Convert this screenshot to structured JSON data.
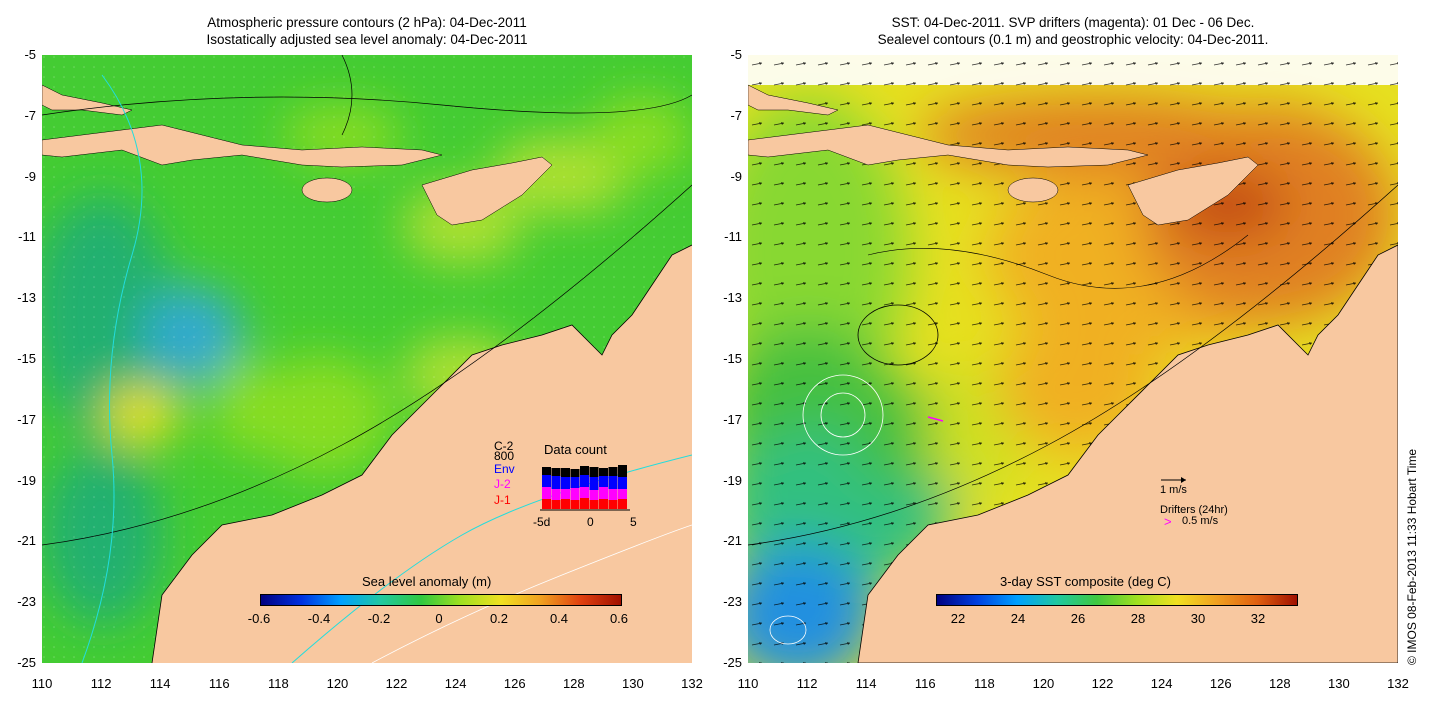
{
  "left_panel": {
    "title_line1": "Atmospheric pressure contours (2 hPa): 04-Dec-2011",
    "title_line2": "Isostatically adjusted sea level anomaly: 04-Dec-2011",
    "y_ticks": [
      "-5",
      "-7",
      "-9",
      "-11",
      "-13",
      "-15",
      "-17",
      "-19",
      "-21",
      "-23",
      "-25"
    ],
    "x_ticks": [
      "110",
      "112",
      "114",
      "116",
      "118",
      "120",
      "122",
      "124",
      "126",
      "128",
      "130",
      "132"
    ],
    "colorbar_title": "Sea level anomaly (m)",
    "colorbar_ticks": [
      "-0.6",
      "-0.4",
      "-0.2",
      "0",
      "0.2",
      "0.4",
      "0.6"
    ],
    "data_count": {
      "title": "Data count",
      "legend": [
        {
          "label": "C-2",
          "color": "#000000"
        },
        {
          "label": "800",
          "color": "#000000"
        },
        {
          "label": "Env",
          "color": "#0000ff"
        },
        {
          "label": "J-2",
          "color": "#ff00ff"
        },
        {
          "label": "J-1",
          "color": "#ff0000"
        }
      ],
      "x_ticks": [
        "-5d",
        "0",
        "5"
      ]
    }
  },
  "right_panel": {
    "title_line1": "SST: 04-Dec-2011. SVP drifters (magenta): 01 Dec - 06 Dec.",
    "title_line2": "Sealevel contours (0.1 m) and geostrophic velocity: 04-Dec-2011.",
    "y_ticks": [
      "-5",
      "-7",
      "-9",
      "-11",
      "-13",
      "-15",
      "-17",
      "-19",
      "-21",
      "-23",
      "-25"
    ],
    "x_ticks": [
      "110",
      "112",
      "114",
      "116",
      "118",
      "120",
      "122",
      "124",
      "126",
      "128",
      "130",
      "132"
    ],
    "colorbar_title": "3-day SST composite (deg C)",
    "colorbar_ticks": [
      "22",
      "24",
      "26",
      "28",
      "30",
      "32"
    ],
    "velocity_scale_label": "1 m/s",
    "drifters_label": "Drifters (24hr)",
    "drifters_speed": "0.5 m/s",
    "drifter_symbol": ">"
  },
  "credit": "© IMOS 08-Feb-2013 11:33 Hobart Time",
  "colors": {
    "land": "#f8c8a0",
    "drifter": "#ff00ff"
  }
}
